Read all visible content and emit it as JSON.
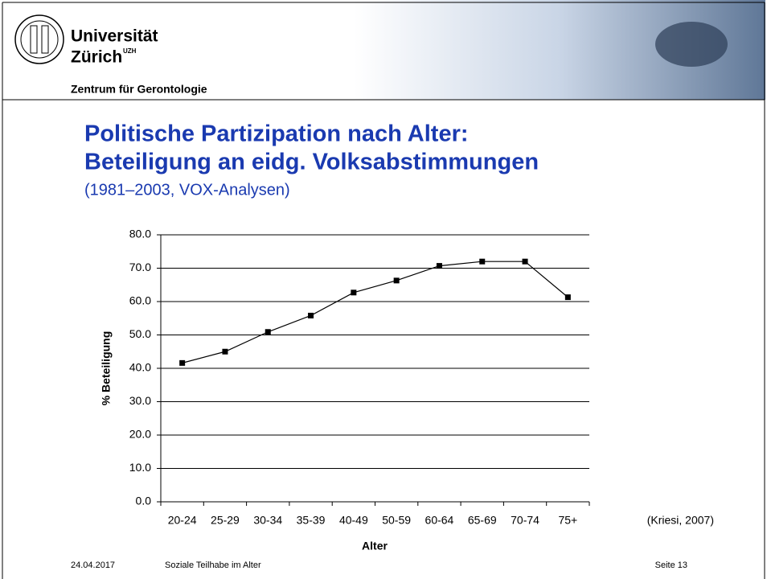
{
  "header": {
    "university": "Universität",
    "city": "Zürich",
    "city_mark": "UZH",
    "unit": "Zentrum für Gerontologie"
  },
  "slide": {
    "title": [
      "Politische Partizipation nach Alter:",
      "Beteiligung an eidg. Volksabstimmungen"
    ],
    "subtitle": "(1981–2003, VOX-Analysen)",
    "source": "(Kriesi, 2007)"
  },
  "chart_data": {
    "type": "line",
    "x_label": "Alter",
    "y_label": "% Beteiligung",
    "categories": [
      "20-24",
      "25-29",
      "30-34",
      "35-39",
      "40-49",
      "50-59",
      "60-64",
      "65-69",
      "70-74",
      "75+"
    ],
    "values": [
      41.6,
      45.0,
      50.9,
      55.8,
      62.7,
      66.3,
      70.7,
      72.0,
      72.0,
      61.3
    ],
    "color": "#000000",
    "ylim": [
      0,
      80
    ],
    "yticks": [
      {
        "value": 0,
        "label": "0.0"
      },
      {
        "value": 10,
        "label": "10.0"
      },
      {
        "value": 20,
        "label": "20.0"
      },
      {
        "value": 30,
        "label": "30.0"
      },
      {
        "value": 40,
        "label": "40.0"
      },
      {
        "value": 50,
        "label": "50.0"
      },
      {
        "value": 60,
        "label": "60.0"
      },
      {
        "value": 70,
        "label": "70.0"
      },
      {
        "value": 80,
        "label": "80.0"
      }
    ],
    "grid": true
  },
  "footer": {
    "date": "24.04.2017",
    "topic": "Soziale Teilhabe im Alter",
    "page": "Seite 13"
  }
}
